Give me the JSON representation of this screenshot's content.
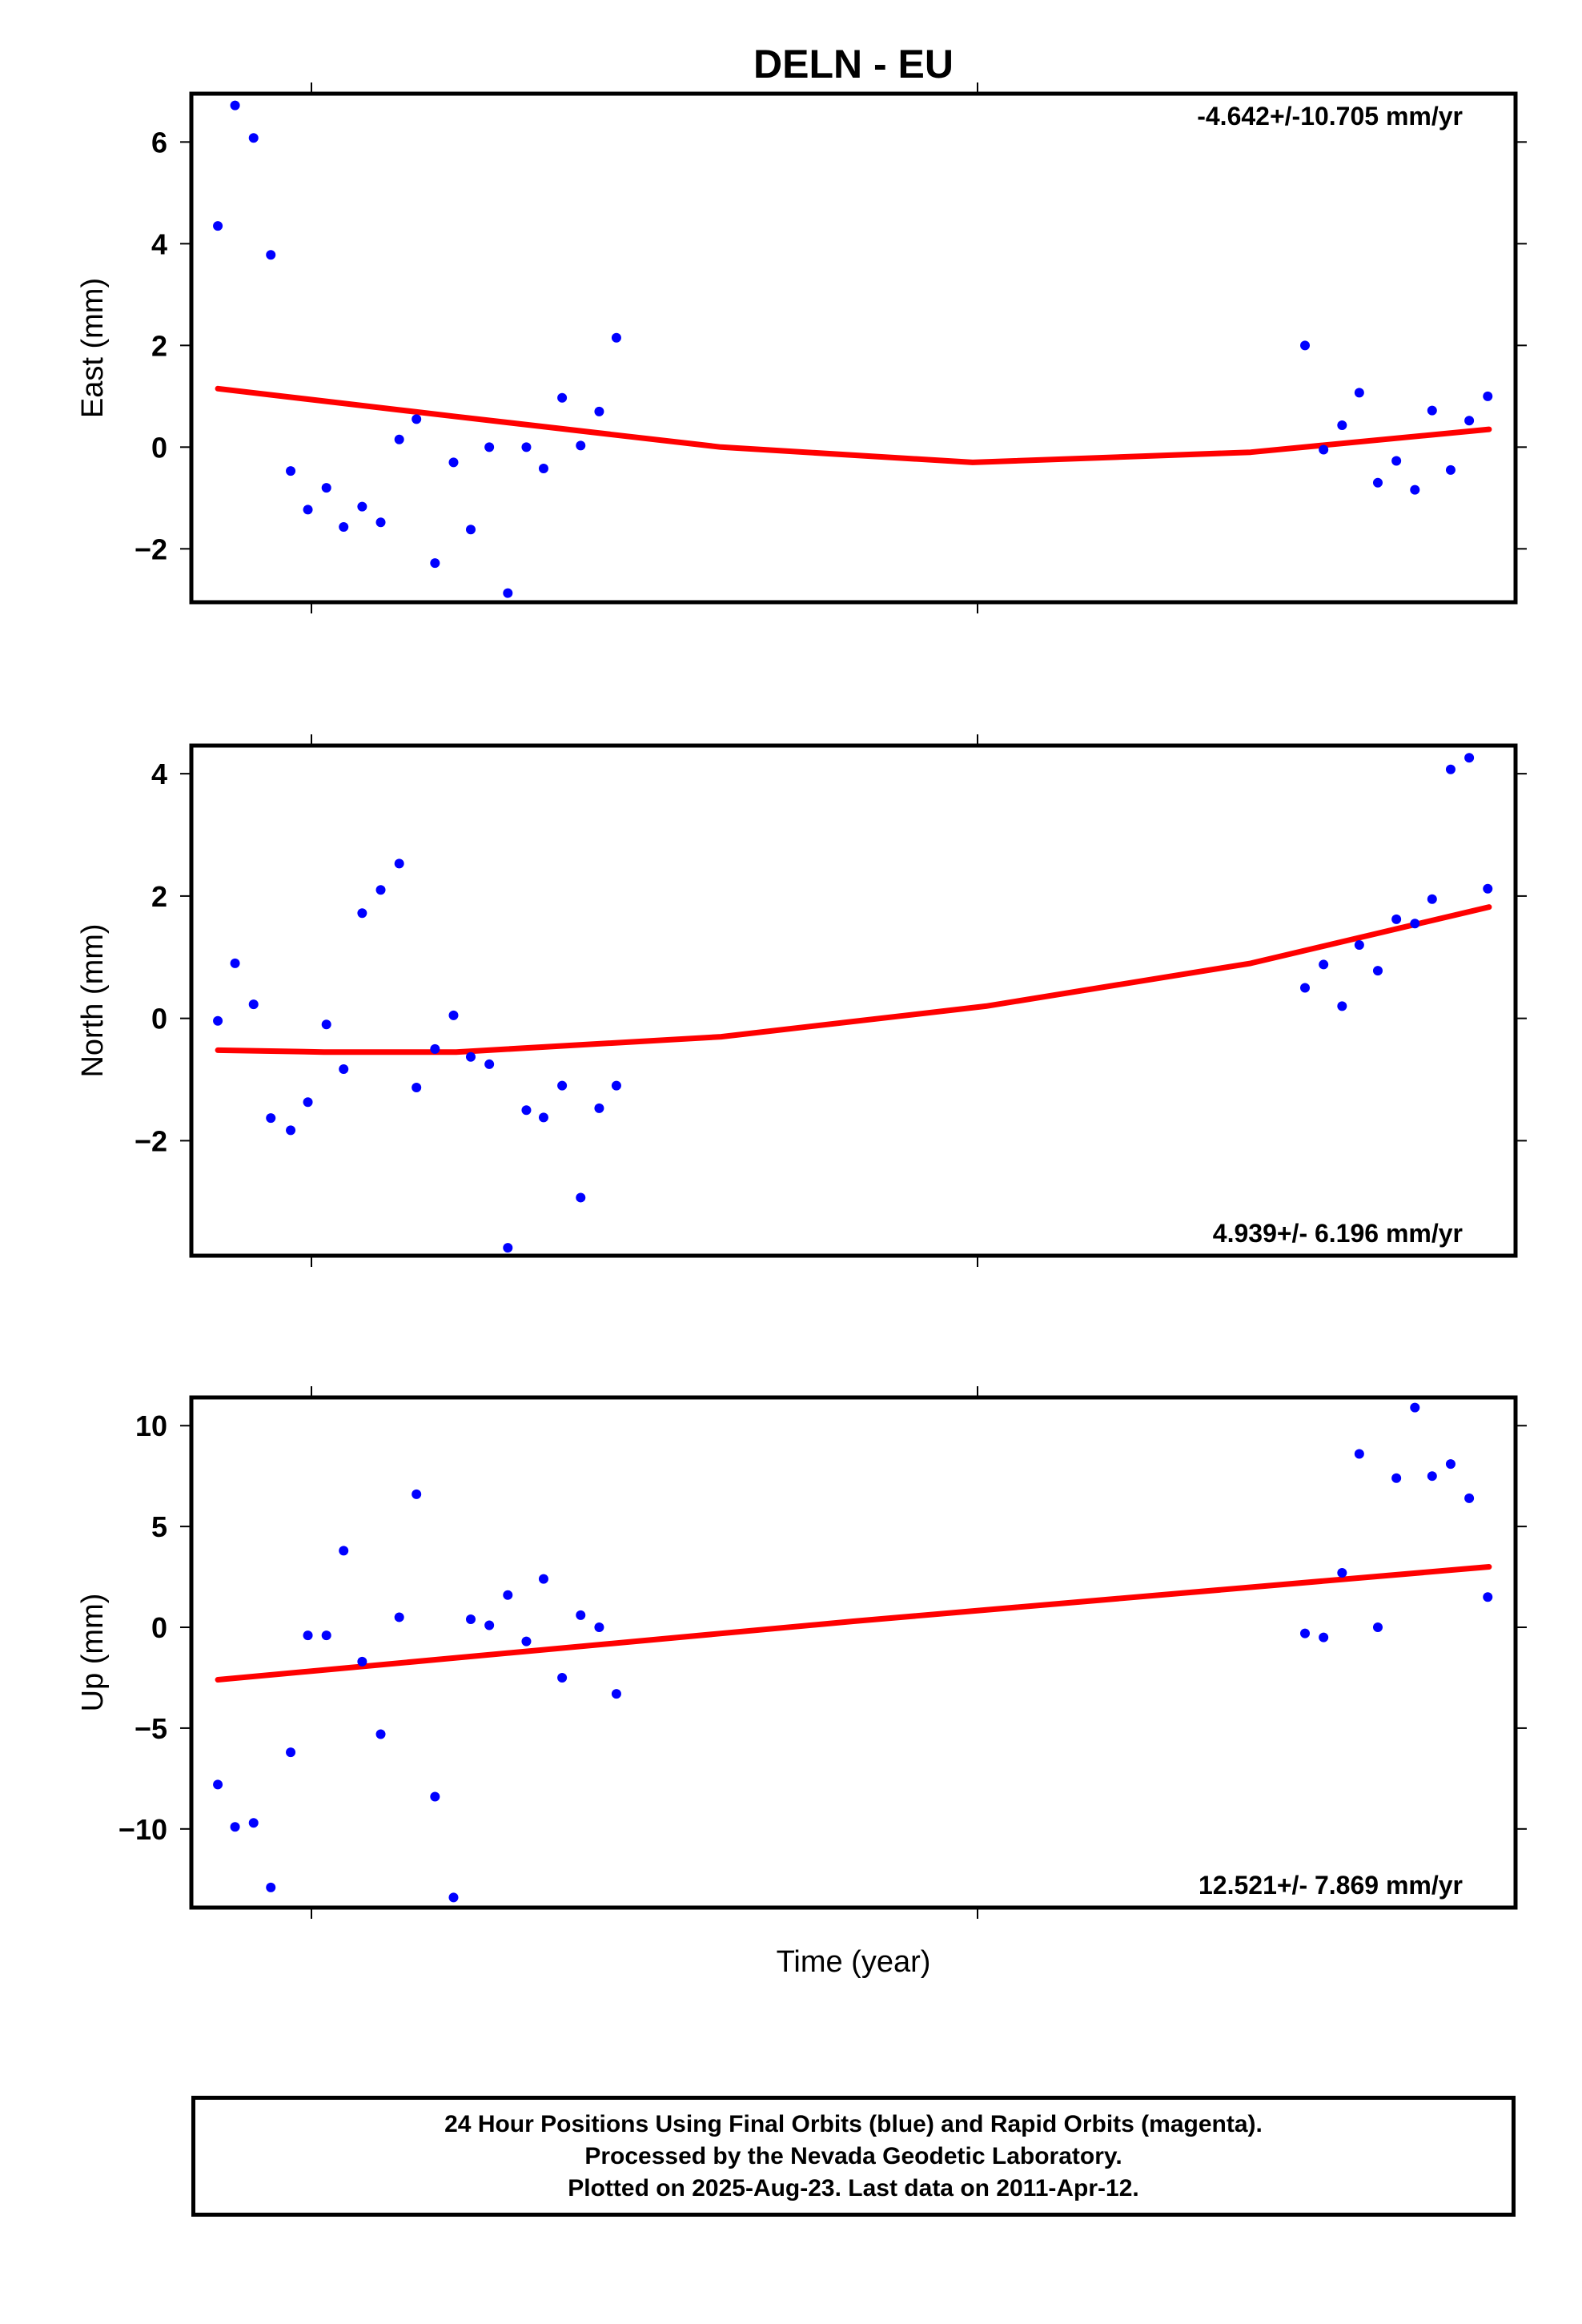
{
  "title": "DELN - EU",
  "xlabel": "Time (year)",
  "footer": {
    "line1": "24 Hour Positions Using Final Orbits (blue) and Rapid Orbits (magenta).",
    "line2": "Processed by the Nevada Geodetic Laboratory.",
    "line3": "Plotted on 2025-Aug-23. Last data on 2011-Apr-12."
  },
  "colors": {
    "final_orbit_points": "#0000ff",
    "fit_curve": "#ff0000",
    "frame": "#000000"
  },
  "chart_data": [
    {
      "type": "scatter",
      "ylabel": "East (mm)",
      "rate_label": "-4.642+/-10.705 mm/yr",
      "rate_position": "top-right",
      "ylim": [
        -3.05,
        6.95
      ],
      "yticks": [
        -2,
        0,
        2,
        4,
        6
      ],
      "xlim": [
        0,
        100
      ],
      "fit": [
        [
          2,
          1.15
        ],
        [
          20,
          0.6
        ],
        [
          40,
          0.0
        ],
        [
          59,
          -0.3
        ],
        [
          80,
          -0.1
        ],
        [
          98,
          0.35
        ]
      ],
      "points": [
        [
          2,
          4.35
        ],
        [
          3.3,
          6.72
        ],
        [
          4.7,
          6.08
        ],
        [
          6,
          3.78
        ],
        [
          7.5,
          -0.47
        ],
        [
          8.8,
          -1.23
        ],
        [
          10.2,
          -0.8
        ],
        [
          11.5,
          -1.57
        ],
        [
          12.9,
          -1.17
        ],
        [
          14.3,
          -1.48
        ],
        [
          15.7,
          0.15
        ],
        [
          17,
          0.55
        ],
        [
          18.4,
          -2.28
        ],
        [
          19.8,
          -0.3
        ],
        [
          21.1,
          -1.62
        ],
        [
          22.5,
          0.0
        ],
        [
          23.9,
          -2.87
        ],
        [
          25.3,
          0.0
        ],
        [
          26.6,
          -0.42
        ],
        [
          28,
          0.97
        ],
        [
          29.4,
          0.03
        ],
        [
          30.8,
          0.7
        ],
        [
          32.1,
          2.15
        ],
        [
          84.1,
          2.0
        ],
        [
          85.5,
          -0.05
        ],
        [
          86.9,
          0.43
        ],
        [
          88.2,
          1.07
        ],
        [
          89.6,
          -0.7
        ],
        [
          91,
          -0.27
        ],
        [
          92.4,
          -0.84
        ],
        [
          93.7,
          0.72
        ],
        [
          95.1,
          -0.45
        ],
        [
          96.5,
          0.52
        ],
        [
          97.9,
          1.0
        ]
      ]
    },
    {
      "type": "scatter",
      "ylabel": "North (mm)",
      "rate_label": "4.939+/- 6.196 mm/yr",
      "rate_position": "bottom-right",
      "ylim": [
        -3.88,
        4.46
      ],
      "yticks": [
        -2,
        0,
        2,
        4
      ],
      "xlim": [
        0,
        100
      ],
      "fit": [
        [
          2,
          -0.52
        ],
        [
          10,
          -0.55
        ],
        [
          20,
          -0.55
        ],
        [
          40,
          -0.3
        ],
        [
          60,
          0.2
        ],
        [
          80,
          0.9
        ],
        [
          98,
          1.82
        ]
      ],
      "points": [
        [
          2,
          -0.04
        ],
        [
          3.3,
          0.9
        ],
        [
          4.7,
          0.23
        ],
        [
          6,
          -1.63
        ],
        [
          7.5,
          -1.83
        ],
        [
          8.8,
          -1.37
        ],
        [
          10.2,
          -0.1
        ],
        [
          11.5,
          -0.83
        ],
        [
          12.9,
          1.72
        ],
        [
          14.3,
          2.1
        ],
        [
          15.7,
          2.53
        ],
        [
          17,
          -1.13
        ],
        [
          18.4,
          -0.5
        ],
        [
          19.8,
          0.05
        ],
        [
          21.1,
          -0.63
        ],
        [
          22.5,
          -0.75
        ],
        [
          23.9,
          -3.75
        ],
        [
          25.3,
          -1.5
        ],
        [
          26.6,
          -1.62
        ],
        [
          28,
          -1.1
        ],
        [
          29.4,
          -2.93
        ],
        [
          30.8,
          -1.47
        ],
        [
          32.1,
          -1.1
        ],
        [
          84.1,
          0.5
        ],
        [
          85.5,
          0.88
        ],
        [
          86.9,
          0.2
        ],
        [
          88.2,
          1.2
        ],
        [
          89.6,
          0.78
        ],
        [
          91,
          1.62
        ],
        [
          92.4,
          1.55
        ],
        [
          93.7,
          1.95
        ],
        [
          95.1,
          4.07
        ],
        [
          96.5,
          4.26
        ],
        [
          97.9,
          2.12
        ]
      ]
    },
    {
      "type": "scatter",
      "ylabel": "Up (mm)",
      "rate_label": "12.521+/- 7.869 mm/yr",
      "rate_position": "bottom-right",
      "ylim": [
        -13.9,
        11.4
      ],
      "yticks": [
        -10,
        -5,
        0,
        5,
        10
      ],
      "xlim": [
        0,
        100
      ],
      "fit": [
        [
          2,
          -2.6
        ],
        [
          50,
          0.3
        ],
        [
          98,
          3.0
        ]
      ],
      "points": [
        [
          2,
          -7.8
        ],
        [
          3.3,
          -9.9
        ],
        [
          4.7,
          -9.7
        ],
        [
          6,
          -12.9
        ],
        [
          7.5,
          -6.2
        ],
        [
          8.8,
          -0.4
        ],
        [
          10.2,
          -0.4
        ],
        [
          11.5,
          3.8
        ],
        [
          12.9,
          -1.7
        ],
        [
          14.3,
          -5.3
        ],
        [
          15.7,
          0.5
        ],
        [
          17,
          6.6
        ],
        [
          18.4,
          -8.4
        ],
        [
          19.8,
          -13.4
        ],
        [
          21.1,
          0.4
        ],
        [
          22.5,
          0.1
        ],
        [
          23.9,
          1.6
        ],
        [
          25.3,
          -0.7
        ],
        [
          26.6,
          2.4
        ],
        [
          28,
          -2.5
        ],
        [
          29.4,
          0.6
        ],
        [
          30.8,
          0.0
        ],
        [
          32.1,
          -3.3
        ],
        [
          84.1,
          -0.3
        ],
        [
          85.5,
          -0.5
        ],
        [
          86.9,
          2.7
        ],
        [
          88.2,
          8.6
        ],
        [
          89.6,
          0.0
        ],
        [
          91,
          7.4
        ],
        [
          92.4,
          10.9
        ],
        [
          93.7,
          7.5
        ],
        [
          95.1,
          8.1
        ],
        [
          96.5,
          6.4
        ],
        [
          97.9,
          1.5
        ]
      ]
    }
  ]
}
